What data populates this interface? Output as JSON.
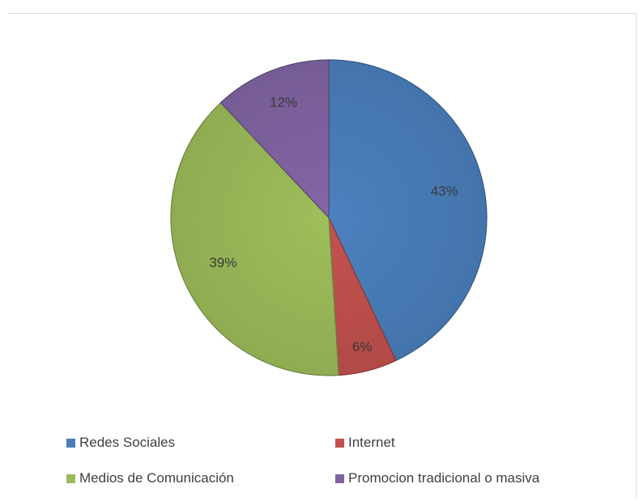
{
  "chart_data": {
    "type": "pie",
    "categories": [
      "Redes Sociales",
      "Internet",
      "Medios de Comunicación",
      "Promocion tradicional o masiva"
    ],
    "values": [
      43,
      6,
      39,
      12
    ],
    "data_labels": [
      "43%",
      "6%",
      "39%",
      "12%"
    ],
    "colors": [
      "#4a7ebb",
      "#c0504d",
      "#9bbb59",
      "#8064a2"
    ],
    "legend_position": "bottom",
    "title": ""
  },
  "legend": {
    "items": [
      {
        "label": "Redes Sociales",
        "color": "#4a7ebb"
      },
      {
        "label": "Internet",
        "color": "#c0504d"
      },
      {
        "label": "Medios de Comunicación",
        "color": "#9bbb59"
      },
      {
        "label": "Promocion tradicional o masiva",
        "color": "#8064a2"
      }
    ]
  }
}
